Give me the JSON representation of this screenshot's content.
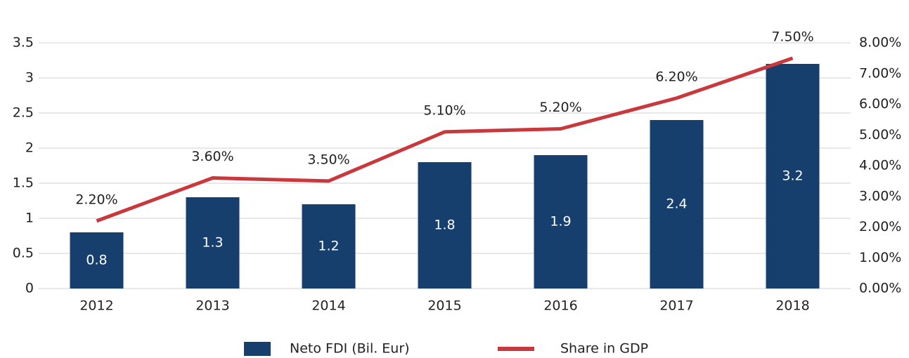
{
  "chart_data": {
    "type": "combo",
    "categories": [
      "2012",
      "2013",
      "2014",
      "2015",
      "2016",
      "2017",
      "2018"
    ],
    "series": [
      {
        "name": "Neto FDI (Bil. Eur)",
        "type": "bar",
        "color": "#163f6e",
        "values": [
          0.8,
          1.3,
          1.2,
          1.8,
          1.9,
          2.4,
          3.2
        ]
      },
      {
        "name": "Share in GDP",
        "type": "line",
        "axis": "y2",
        "color": "#c8383d",
        "values": [
          2.2,
          3.6,
          3.5,
          5.1,
          5.2,
          6.2,
          7.5
        ],
        "value_labels": [
          "2.20%",
          "3.60%",
          "3.50%",
          "5.10%",
          "5.20%",
          "6.20%",
          "7.50%"
        ]
      }
    ],
    "ylim": [
      0,
      3.5
    ],
    "yticks": [
      0,
      0.5,
      1,
      1.5,
      2,
      2.5,
      3,
      3.5
    ],
    "y2lim": [
      0,
      8
    ],
    "y2ticks": [
      {
        "value": 0,
        "label": "0.00%"
      },
      {
        "value": 1,
        "label": "1.00%"
      },
      {
        "value": 2,
        "label": "2.00%"
      },
      {
        "value": 3,
        "label": "3.00%"
      },
      {
        "value": 4,
        "label": "4.00%"
      },
      {
        "value": 5,
        "label": "5.00%"
      },
      {
        "value": 6,
        "label": "6.00%"
      },
      {
        "value": 7,
        "label": "7.00%"
      },
      {
        "value": 8,
        "label": "8.00%"
      }
    ],
    "grid": true,
    "legend": "bottom"
  }
}
